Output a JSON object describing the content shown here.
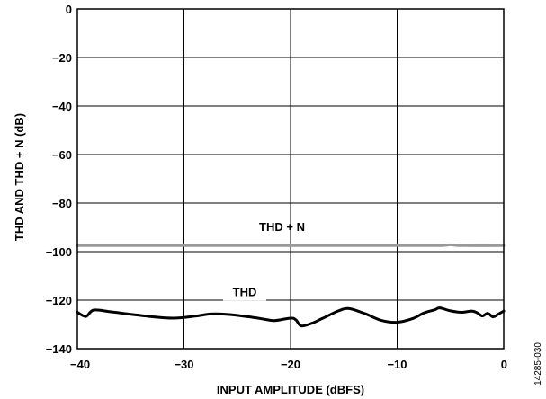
{
  "chart_data": {
    "type": "line",
    "xlabel": "INPUT AMPLITUDE (dBFS)",
    "ylabel": "THD AND THD + N (dB)",
    "xlim": [
      -40,
      0
    ],
    "ylim": [
      -140,
      0
    ],
    "x_ticks": [
      "−40",
      "−30",
      "−20",
      "−10",
      "0"
    ],
    "y_ticks": [
      "0",
      "−20",
      "−40",
      "−60",
      "−80",
      "−100",
      "−120",
      "−140"
    ],
    "grid": true,
    "figure_id": "14285-030",
    "series": [
      {
        "name": "THD + N",
        "color": "#999999",
        "x": [
          -40,
          -35,
          -30,
          -25,
          -20,
          -15,
          -10,
          -6,
          -5,
          -4,
          0
        ],
        "y": [
          -97.5,
          -97.5,
          -97.5,
          -97.5,
          -97.5,
          -97.5,
          -97.5,
          -97.5,
          -97.2,
          -97.5,
          -97.5
        ]
      },
      {
        "name": "THD",
        "color": "#000000",
        "x": [
          -40,
          -39.2,
          -38.5,
          -37,
          -35,
          -33,
          -31,
          -29,
          -27.5,
          -26,
          -24,
          -22.5,
          -21.5,
          -20,
          -19.5,
          -19,
          -18,
          -17,
          -15.5,
          -14.5,
          -13,
          -11.5,
          -10,
          -8.5,
          -7.5,
          -6.5,
          -6,
          -5,
          -4,
          -3,
          -2.5,
          -2,
          -1.5,
          -1,
          -0.5,
          0
        ],
        "y": [
          -125,
          -126.7,
          -124.1,
          -124.7,
          -125.8,
          -126.8,
          -127.4,
          -126.6,
          -125.7,
          -125.8,
          -126.8,
          -127.8,
          -128.4,
          -127.4,
          -128.1,
          -130.6,
          -129.5,
          -127.5,
          -124.4,
          -123.5,
          -125.6,
          -128.3,
          -129.1,
          -127.5,
          -125.3,
          -124.0,
          -123.2,
          -124.4,
          -125.0,
          -124.5,
          -125.2,
          -126.5,
          -125.4,
          -126.9,
          -125.7,
          -124.5
        ]
      }
    ]
  }
}
